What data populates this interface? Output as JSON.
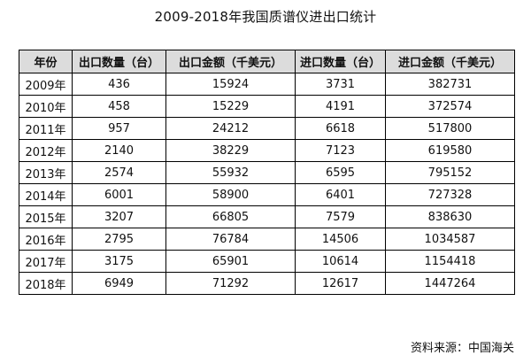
{
  "chart_data": {
    "type": "table",
    "title": "2009-2018年我国质谱仪进出口统计",
    "columns": [
      "年份",
      "出口数量（台）",
      "出口金额（千美元）",
      "进口数量（台）",
      "进口金额（千美元）"
    ],
    "rows": [
      [
        "2009年",
        "436",
        "15924",
        "3731",
        "382731"
      ],
      [
        "2010年",
        "458",
        "15229",
        "4191",
        "372574"
      ],
      [
        "2011年",
        "957",
        "24212",
        "6618",
        "517800"
      ],
      [
        "2012年",
        "2140",
        "38229",
        "7123",
        "619580"
      ],
      [
        "2013年",
        "2574",
        "55932",
        "6595",
        "795152"
      ],
      [
        "2014年",
        "6001",
        "58900",
        "6401",
        "727328"
      ],
      [
        "2015年",
        "3207",
        "66805",
        "7579",
        "838630"
      ],
      [
        "2016年",
        "2795",
        "76784",
        "14506",
        "1034587"
      ],
      [
        "2017年",
        "3175",
        "65901",
        "10614",
        "1154418"
      ],
      [
        "2018年",
        "6949",
        "71292",
        "12617",
        "1447264"
      ]
    ],
    "source": "资料来源：中国海关"
  }
}
